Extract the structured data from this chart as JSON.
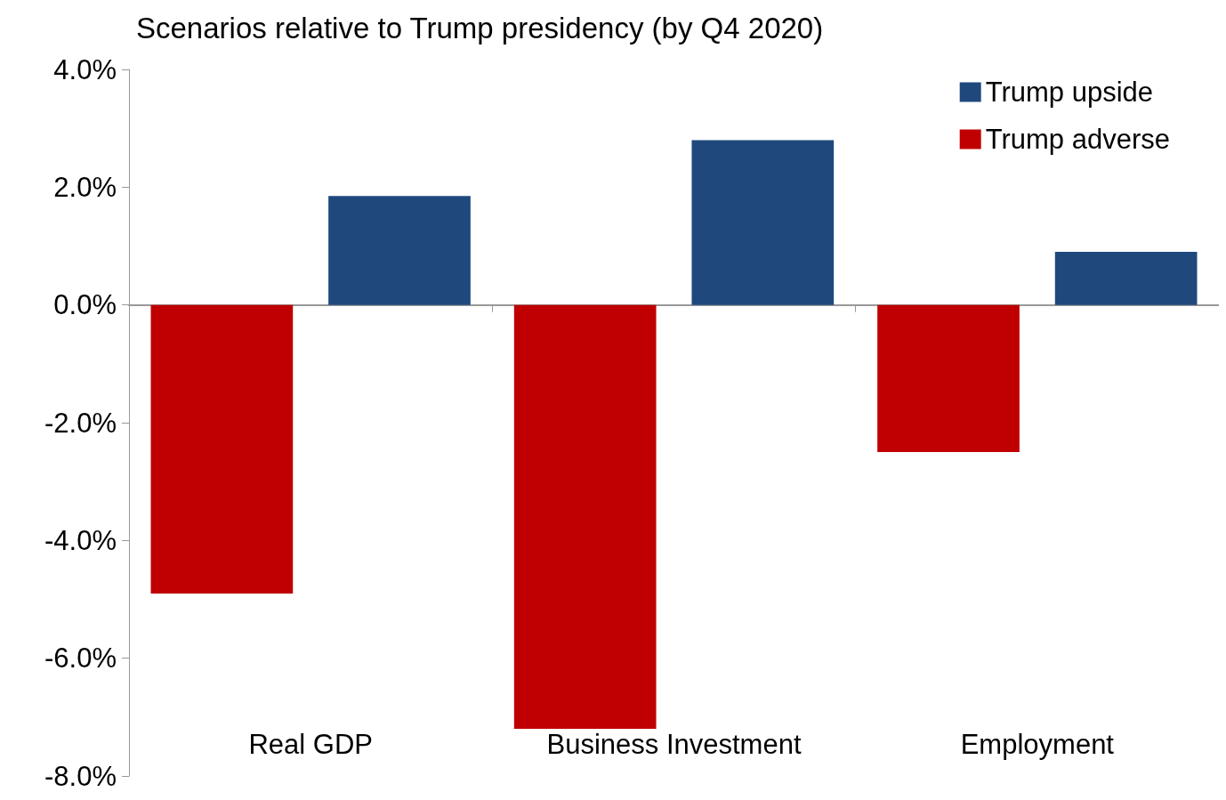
{
  "chart_data": {
    "type": "bar",
    "title": "Scenarios relative to Trump presidency (by Q4 2020)",
    "categories": [
      "Real GDP",
      "Business Investment",
      "Employment"
    ],
    "series": [
      {
        "name": "Trump adverse",
        "color": "#c00000",
        "values": [
          -4.9,
          -7.2,
          -2.5
        ]
      },
      {
        "name": "Trump upside",
        "color": "#1f497d",
        "values": [
          1.85,
          2.8,
          0.9
        ]
      }
    ],
    "ylim": [
      -8,
      4
    ],
    "yticks": [
      {
        "value": -8,
        "label": "-8.0%"
      },
      {
        "value": -6,
        "label": "-6.0%"
      },
      {
        "value": -4,
        "label": "-4.0%"
      },
      {
        "value": -2,
        "label": "-2.0%"
      },
      {
        "value": 0,
        "label": "0.0%"
      },
      {
        "value": 2,
        "label": "2.0%"
      },
      {
        "value": 4,
        "label": "4.0%"
      }
    ],
    "legend": "top right"
  }
}
